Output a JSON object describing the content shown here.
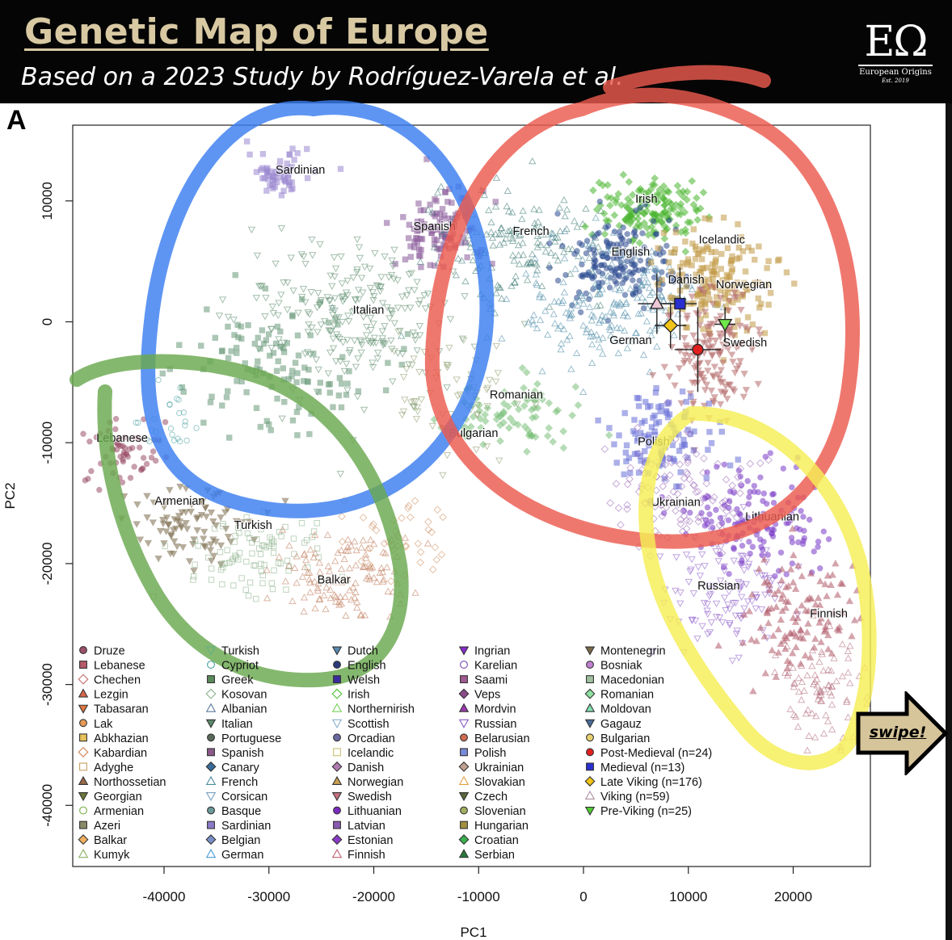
{
  "header": {
    "title": "Genetic Map of Europe",
    "subtitle": "Based on a 2023 Study by Rodríguez-Varela et al.",
    "logo": {
      "mark": "EΩ",
      "name": "European Origins",
      "est": "Est. 2019"
    }
  },
  "panel_letter": "A",
  "swipe_label": "swipe!",
  "chart_data": {
    "type": "scatter",
    "xlabel": "PC1",
    "ylabel": "PC2",
    "xlim": [
      -48000,
      27000
    ],
    "ylim": [
      -45000,
      16500
    ],
    "xticks": [
      -40000,
      -30000,
      -20000,
      -10000,
      0,
      10000,
      20000
    ],
    "yticks": [
      10000,
      0,
      -10000,
      -20000,
      -30000,
      -40000
    ],
    "xtick_labels": [
      "-40000",
      "-30000",
      "-20000",
      "-10000",
      "0",
      "10000",
      "20000"
    ],
    "ytick_labels": [
      "10000",
      "0",
      "-10000",
      "-20000",
      "-30000",
      "-40000"
    ],
    "grid": false,
    "legend_placement": "bottom-left",
    "population_labels": [
      {
        "text": "Sardinian",
        "x": -27000,
        "y": 12600
      },
      {
        "text": "Spanish",
        "x": -14200,
        "y": 7900
      },
      {
        "text": "French",
        "x": -5000,
        "y": 7500
      },
      {
        "text": "Irish",
        "x": 6000,
        "y": 10200
      },
      {
        "text": "English",
        "x": 4500,
        "y": 5800
      },
      {
        "text": "Icelandic",
        "x": 13200,
        "y": 6800
      },
      {
        "text": "Danish",
        "x": 9800,
        "y": 3500
      },
      {
        "text": "Norwegian",
        "x": 15300,
        "y": 3100
      },
      {
        "text": "Italian",
        "x": -20500,
        "y": 1000
      },
      {
        "text": "German",
        "x": 4500,
        "y": -1500
      },
      {
        "text": "Swedish",
        "x": 15400,
        "y": -1700
      },
      {
        "text": "Romanian",
        "x": -6400,
        "y": -6000
      },
      {
        "text": "Bulgarian",
        "x": -10500,
        "y": -9200
      },
      {
        "text": "Lebanese",
        "x": -44000,
        "y": -9600
      },
      {
        "text": "Polish",
        "x": 6700,
        "y": -9900
      },
      {
        "text": "Armenian",
        "x": -38500,
        "y": -14800
      },
      {
        "text": "Turkish",
        "x": -31500,
        "y": -16800
      },
      {
        "text": "Ukrainian",
        "x": 8800,
        "y": -14900
      },
      {
        "text": "Lithuanian",
        "x": 18000,
        "y": -16100
      },
      {
        "text": "Balkar",
        "x": -23800,
        "y": -21300
      },
      {
        "text": "Russian",
        "x": 12900,
        "y": -21800
      },
      {
        "text": "Finnish",
        "x": 23400,
        "y": -24100
      }
    ],
    "series": [
      {
        "name": "Post-Medieval (n=24)",
        "x": 10900,
        "y": -2300,
        "color": "#e0201f",
        "marker": "circle"
      },
      {
        "name": "Medieval (n=13)",
        "x": 9200,
        "y": 1500,
        "color": "#2a2fd0",
        "marker": "square"
      },
      {
        "name": "Late Viking (n=176)",
        "x": 8300,
        "y": -300,
        "color": "#f0c419",
        "marker": "diamond"
      },
      {
        "name": "Viking (n=59)",
        "x": 7000,
        "y": 1500,
        "color": "#ecc9d6",
        "marker": "triangle-up"
      },
      {
        "name": "Pre-Viking (n=25)",
        "x": 13500,
        "y": -200,
        "color": "#6fe84a",
        "marker": "triangle-down"
      }
    ],
    "legend": [
      [
        {
          "label": "Druze",
          "marker": "circle",
          "color": "#9b4f6a"
        },
        {
          "label": "Lebanese",
          "marker": "square",
          "color": "#b65a6a"
        },
        {
          "label": "Chechen",
          "marker": "diamond-open",
          "color": "#c0706a"
        },
        {
          "label": "Lezgin",
          "marker": "triangle-up",
          "color": "#d9674a"
        },
        {
          "label": "Tabasaran",
          "marker": "triangle-down",
          "color": "#e07840"
        },
        {
          "label": "Lak",
          "marker": "circle",
          "color": "#e69a55"
        },
        {
          "label": "Abkhazian",
          "marker": "square",
          "color": "#e8c25a"
        },
        {
          "label": "Kabardian",
          "marker": "diamond-open",
          "color": "#d08050"
        },
        {
          "label": "Adyghe",
          "marker": "square-open",
          "color": "#c8a060"
        },
        {
          "label": "Northossetian",
          "marker": "triangle-up",
          "color": "#9a6a4a"
        },
        {
          "label": "Georgian",
          "marker": "triangle-down",
          "color": "#6a7a3a"
        },
        {
          "label": "Armenian",
          "marker": "circle-open",
          "color": "#7ab04a"
        },
        {
          "label": "Azeri",
          "marker": "square",
          "color": "#8a8a6a"
        },
        {
          "label": "Balkar",
          "marker": "diamond",
          "color": "#f0b060"
        },
        {
          "label": "Kumyk",
          "marker": "triangle-up-open",
          "color": "#8ab060"
        }
      ],
      [
        {
          "label": "Turkish",
          "marker": "triangle-down-open",
          "color": "#60b080"
        },
        {
          "label": "Cypriot",
          "marker": "circle-open",
          "color": "#4aa0a0"
        },
        {
          "label": "Greek",
          "marker": "square",
          "color": "#5a8a5a"
        },
        {
          "label": "Kosovan",
          "marker": "diamond-open",
          "color": "#8ab08a"
        },
        {
          "label": "Albanian",
          "marker": "triangle-up-open",
          "color": "#5a7a9a"
        },
        {
          "label": "Italian",
          "marker": "triangle-down",
          "color": "#5a8a6a"
        },
        {
          "label": "Portuguese",
          "marker": "circle",
          "color": "#5a6a5a"
        },
        {
          "label": "Spanish",
          "marker": "square",
          "color": "#8a5a8a"
        },
        {
          "label": "Canary",
          "marker": "diamond",
          "color": "#3a6a9a"
        },
        {
          "label": "French",
          "marker": "triangle-up-open",
          "color": "#4a8a9a"
        },
        {
          "label": "Corsican",
          "marker": "triangle-down-open",
          "color": "#7aa0c0"
        },
        {
          "label": "Basque",
          "marker": "circle",
          "color": "#6a9a9a"
        },
        {
          "label": "Sardinian",
          "marker": "square",
          "color": "#8a7ac8"
        },
        {
          "label": "Belgian",
          "marker": "diamond",
          "color": "#7a90c8"
        },
        {
          "label": "German",
          "marker": "triangle-up-open",
          "color": "#4a9ad0"
        }
      ],
      [
        {
          "label": "Dutch",
          "marker": "triangle-down",
          "color": "#5a8ab0"
        },
        {
          "label": "English",
          "marker": "circle",
          "color": "#2a3a7a"
        },
        {
          "label": "Welsh",
          "marker": "square",
          "color": "#3a2aa0"
        },
        {
          "label": "Irish",
          "marker": "diamond-open",
          "color": "#4ac030"
        },
        {
          "label": "Northernirish",
          "marker": "triangle-up-open",
          "color": "#7ad05a"
        },
        {
          "label": "Scottish",
          "marker": "triangle-down-open",
          "color": "#8ab0d0"
        },
        {
          "label": "Orcadian",
          "marker": "circle",
          "color": "#6a6aa0"
        },
        {
          "label": "Icelandic",
          "marker": "square-open",
          "color": "#c8c070"
        },
        {
          "label": "Danish",
          "marker": "diamond",
          "color": "#b07ab0"
        },
        {
          "label": "Norwegian",
          "marker": "triangle-up",
          "color": "#c8a050"
        },
        {
          "label": "Swedish",
          "marker": "triangle-down",
          "color": "#c87080"
        },
        {
          "label": "Lithuanian",
          "marker": "circle",
          "color": "#7a2ac0"
        },
        {
          "label": "Latvian",
          "marker": "square",
          "color": "#8a5ab0"
        },
        {
          "label": "Estonian",
          "marker": "diamond",
          "color": "#8a3ac8"
        },
        {
          "label": "Finnish",
          "marker": "triangle-up-open",
          "color": "#c06070"
        }
      ],
      [
        {
          "label": "Ingrian",
          "marker": "triangle-down",
          "color": "#8a2ad0"
        },
        {
          "label": "Karelian",
          "marker": "circle-open",
          "color": "#7a4ab0"
        },
        {
          "label": "Saami",
          "marker": "square",
          "color": "#a05a90"
        },
        {
          "label": "Veps",
          "marker": "diamond",
          "color": "#8a4a8a"
        },
        {
          "label": "Mordvin",
          "marker": "triangle-up",
          "color": "#9a3ab0"
        },
        {
          "label": "Russian",
          "marker": "triangle-down-open",
          "color": "#8a5ac8"
        },
        {
          "label": "Belarusian",
          "marker": "circle",
          "color": "#d06a50"
        },
        {
          "label": "Polish",
          "marker": "square",
          "color": "#7a8ad8"
        },
        {
          "label": "Ukrainian",
          "marker": "diamond",
          "color": "#c0a090"
        },
        {
          "label": "Slovakian",
          "marker": "triangle-up-open",
          "color": "#e0a040"
        },
        {
          "label": "Czech",
          "marker": "triangle-down",
          "color": "#5a6a3a"
        },
        {
          "label": "Slovenian",
          "marker": "circle",
          "color": "#a0b060"
        },
        {
          "label": "Hungarian",
          "marker": "square",
          "color": "#a09040"
        },
        {
          "label": "Croatian",
          "marker": "diamond",
          "color": "#3ab050"
        },
        {
          "label": "Serbian",
          "marker": "triangle-up",
          "color": "#2a7a3a"
        }
      ],
      [
        {
          "label": "Montenegrin",
          "marker": "triangle-down",
          "color": "#7a6a4a"
        },
        {
          "label": "Bosniak",
          "marker": "circle",
          "color": "#c080d0"
        },
        {
          "label": "Macedonian",
          "marker": "square",
          "color": "#a0c0a0"
        },
        {
          "label": "Romanian",
          "marker": "diamond",
          "color": "#90e0a0"
        },
        {
          "label": "Moldovan",
          "marker": "triangle-up",
          "color": "#80e0b0"
        },
        {
          "label": "Gagauz",
          "marker": "triangle-down",
          "color": "#4a6a9a"
        },
        {
          "label": "Bulgarian",
          "marker": "circle",
          "color": "#e8d070"
        },
        {
          "label": "Post-Medieval (n=24)",
          "marker": "circle",
          "color": "#e0201f"
        },
        {
          "label": "Medieval (n=13)",
          "marker": "square",
          "color": "#2a2fd0"
        },
        {
          "label": "Late Viking (n=176)",
          "marker": "diamond",
          "color": "#f0c419"
        },
        {
          "label": "Viking (n=59)",
          "marker": "triangle-up-open",
          "color": "#b090a0"
        },
        {
          "label": "Pre-Viking (n=25)",
          "marker": "triangle-down",
          "color": "#50d030"
        }
      ]
    ]
  },
  "colors": {
    "blue_ring": "#3b7ef0",
    "red_ring": "#ec5a4e",
    "green_ring": "#6aa84f",
    "yellow_ring": "#f5ee55",
    "header_bg": "#050505",
    "title": "#d8c9a3",
    "swipe_arrow": "#d6c59a"
  }
}
